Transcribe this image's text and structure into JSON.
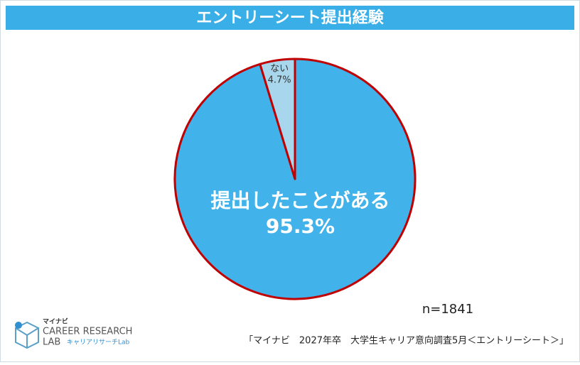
{
  "chart_data": {
    "type": "pie",
    "title": "エントリーシート提出経験",
    "categories": [
      "提出したことがある",
      "ない"
    ],
    "values": [
      95.3,
      4.7
    ],
    "value_labels": [
      "95.3%",
      "4.7%"
    ],
    "colors": [
      "#41b2ea",
      "#a8d6ec"
    ],
    "edge_color": "#c00000",
    "note": "n=1841",
    "source": "「マイナビ　2027年卒　大学生キャリア意向調査5月＜エントリーシート＞」"
  },
  "logo": {
    "brand": "マイナビ",
    "line1": "CAREER RESEARCH",
    "line2": "LAB",
    "tagline": "キャリアリサーチLab"
  }
}
